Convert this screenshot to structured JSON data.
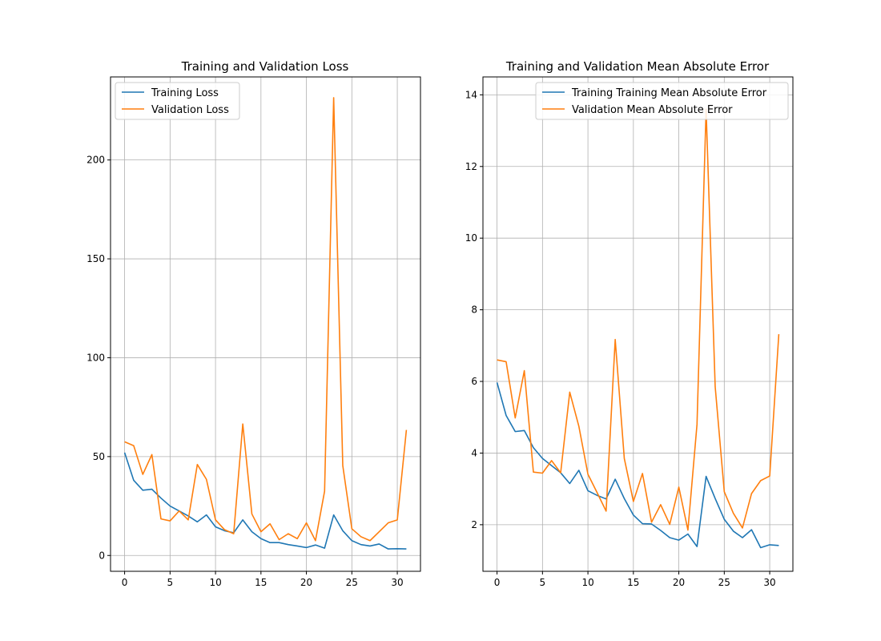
{
  "chart_data": [
    {
      "type": "line",
      "title": "Training and Validation Loss",
      "xlabel": "",
      "ylabel": "",
      "xlim": [
        -1.55,
        32.55
      ],
      "ylim": [
        -8,
        242
      ],
      "xticks": [
        0,
        5,
        10,
        15,
        20,
        25,
        30
      ],
      "yticks": [
        0,
        50,
        100,
        150,
        200
      ],
      "grid": true,
      "legend": "top-left",
      "x": [
        0,
        1,
        2,
        3,
        4,
        5,
        6,
        7,
        8,
        9,
        10,
        11,
        12,
        13,
        14,
        15,
        16,
        17,
        18,
        19,
        20,
        21,
        22,
        23,
        24,
        25,
        26,
        27,
        28,
        29,
        30,
        31
      ],
      "series": [
        {
          "name": "Training Loss",
          "color": "#1f77b4",
          "values": [
            52,
            38,
            33,
            33.5,
            29,
            25,
            22.5,
            20,
            17,
            20.5,
            14.5,
            12.5,
            11.5,
            18,
            12,
            8.5,
            6.5,
            6.5,
            5.5,
            4.8,
            4,
            5.3,
            3.7,
            20.5,
            12.5,
            7.5,
            5.5,
            4.8,
            5.8,
            3.3,
            3.4,
            3.3
          ]
        },
        {
          "name": "Validation Loss",
          "color": "#ff7f0e",
          "values": [
            57.5,
            55.5,
            41,
            51,
            18.5,
            17.5,
            22.5,
            18,
            46,
            38.5,
            18,
            13,
            11,
            66.5,
            21,
            12,
            16,
            8,
            11,
            8.5,
            16.5,
            7.5,
            32.5,
            231.5,
            45.5,
            13.5,
            9.5,
            7.5,
            12,
            16.5,
            18,
            63.5
          ]
        }
      ]
    },
    {
      "type": "line",
      "title": "Training and Validation Mean Absolute Error",
      "xlabel": "",
      "ylabel": "",
      "xlim": [
        -1.55,
        32.55
      ],
      "ylim": [
        0.7,
        14.5
      ],
      "xticks": [
        0,
        5,
        10,
        15,
        20,
        25,
        30
      ],
      "yticks": [
        2,
        4,
        6,
        8,
        10,
        12,
        14
      ],
      "grid": true,
      "legend": "top-right",
      "x": [
        0,
        1,
        2,
        3,
        4,
        5,
        6,
        7,
        8,
        9,
        10,
        11,
        12,
        13,
        14,
        15,
        16,
        17,
        18,
        19,
        20,
        21,
        22,
        23,
        24,
        25,
        26,
        27,
        28,
        29,
        30,
        31
      ],
      "series": [
        {
          "name": "Training Training Mean Absolute Error",
          "color": "#1f77b4",
          "values": [
            5.97,
            5.05,
            4.6,
            4.63,
            4.15,
            3.85,
            3.65,
            3.45,
            3.15,
            3.52,
            2.95,
            2.82,
            2.72,
            3.27,
            2.73,
            2.27,
            2.03,
            2.02,
            1.84,
            1.64,
            1.57,
            1.74,
            1.39,
            3.35,
            2.73,
            2.15,
            1.82,
            1.64,
            1.86,
            1.36,
            1.44,
            1.42
          ]
        },
        {
          "name": "Validation Mean Absolute Error",
          "color": "#ff7f0e",
          "values": [
            6.6,
            6.55,
            4.98,
            6.3,
            3.47,
            3.44,
            3.79,
            3.45,
            5.7,
            4.75,
            3.41,
            2.9,
            2.38,
            7.17,
            3.85,
            2.65,
            3.43,
            2.07,
            2.56,
            2.01,
            3.05,
            1.85,
            4.8,
            13.6,
            5.85,
            2.92,
            2.32,
            1.91,
            2.87,
            3.23,
            3.36,
            7.32
          ]
        }
      ]
    }
  ]
}
